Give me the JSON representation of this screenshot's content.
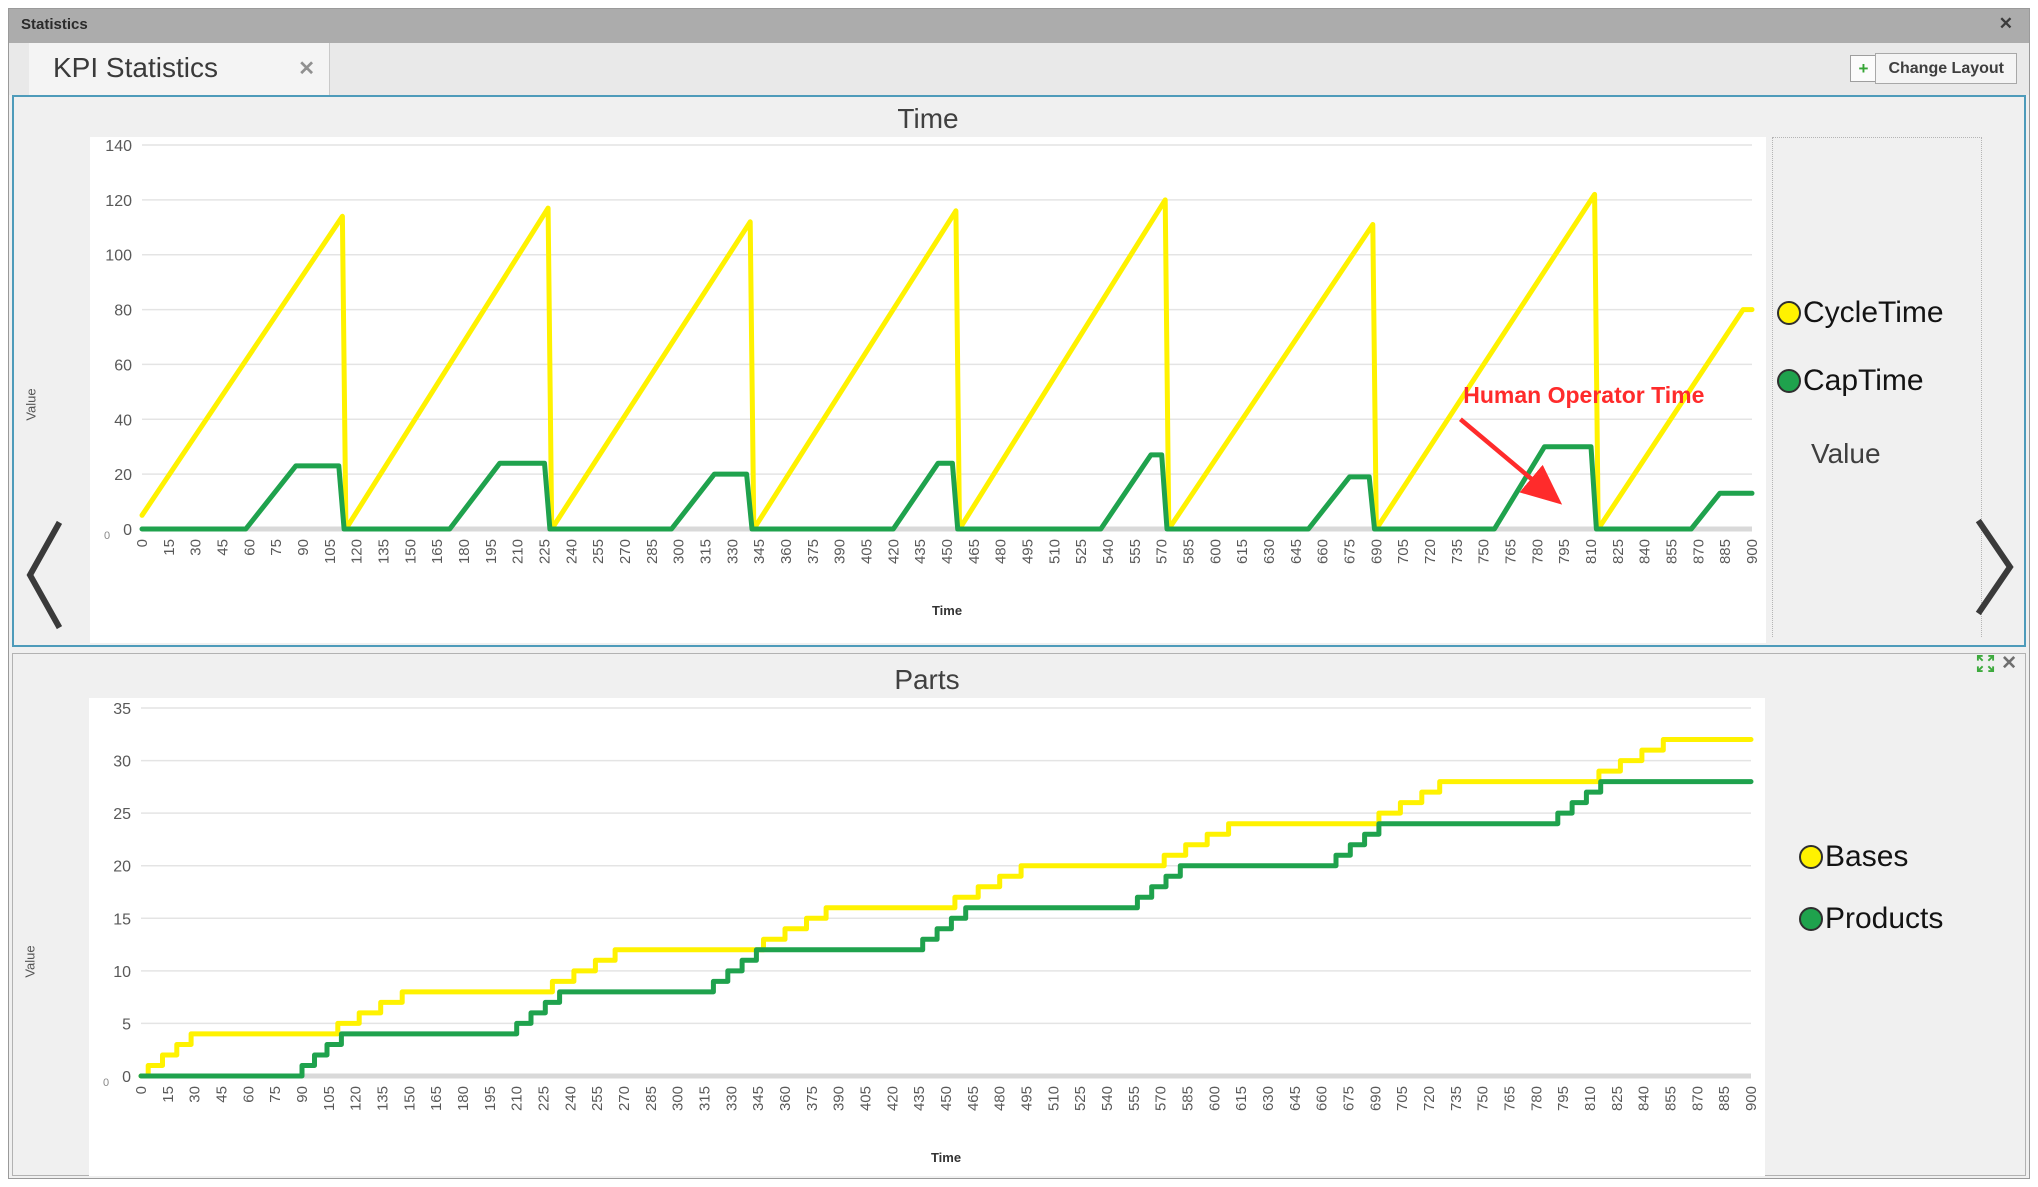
{
  "window": {
    "title": "Statistics",
    "close_icon": "✕"
  },
  "tab": {
    "label": "KPI Statistics",
    "close_icon": "✕"
  },
  "toolbar": {
    "add_icon": "+",
    "change_layout_label": "Change Layout"
  },
  "panel2_controls": {
    "close_icon": "✕"
  },
  "colors": {
    "accent_blue": "#4E9BBA",
    "series_yellow": "#FFF200",
    "series_green": "#1FA24D",
    "annotation_red": "#FF2B2B",
    "grid": "#E4E4E4",
    "zero_band": "#D9D9D9",
    "tick_text": "#595959"
  },
  "chart_data": [
    {
      "type": "line",
      "title": "Time",
      "xlabel": "Time",
      "ylabel": "Value",
      "corner_label": "0",
      "grid": true,
      "legend_position": "right",
      "legend_footer": "Value",
      "xlim": [
        0,
        900
      ],
      "ylim": [
        0,
        140
      ],
      "y_ticks": [
        0,
        20,
        40,
        60,
        80,
        100,
        120,
        140
      ],
      "x_ticks": [
        0,
        15,
        30,
        45,
        60,
        75,
        90,
        105,
        120,
        135,
        150,
        165,
        180,
        195,
        210,
        225,
        240,
        255,
        270,
        285,
        300,
        315,
        330,
        345,
        360,
        375,
        390,
        405,
        420,
        435,
        450,
        465,
        480,
        495,
        510,
        525,
        540,
        555,
        570,
        585,
        600,
        615,
        630,
        645,
        660,
        675,
        690,
        705,
        720,
        735,
        750,
        765,
        780,
        795,
        810,
        825,
        840,
        855,
        870,
        885,
        900
      ],
      "series": [
        {
          "name": "CycleTime",
          "color": "#FFF200",
          "interp": "linear",
          "points": [
            [
              0,
              5
            ],
            [
              112,
              114
            ],
            [
              114,
              0
            ],
            [
              227,
              117
            ],
            [
              229,
              0
            ],
            [
              340,
              112
            ],
            [
              342,
              0
            ],
            [
              455,
              116
            ],
            [
              457,
              0
            ],
            [
              572,
              120
            ],
            [
              574,
              0
            ],
            [
              688,
              111
            ],
            [
              690,
              0
            ],
            [
              812,
              122
            ],
            [
              814,
              0
            ],
            [
              895,
              80
            ],
            [
              900,
              80
            ]
          ]
        },
        {
          "name": "CapTime",
          "color": "#1FA24D",
          "interp": "linear",
          "points": [
            [
              0,
              0
            ],
            [
              58,
              0
            ],
            [
              86,
              23
            ],
            [
              110,
              23
            ],
            [
              113,
              0
            ],
            [
              172,
              0
            ],
            [
              200,
              24
            ],
            [
              225,
              24
            ],
            [
              228,
              0
            ],
            [
              296,
              0
            ],
            [
              320,
              20
            ],
            [
              338,
              20
            ],
            [
              341,
              0
            ],
            [
              420,
              0
            ],
            [
              445,
              24
            ],
            [
              453,
              24
            ],
            [
              456,
              0
            ],
            [
              536,
              0
            ],
            [
              564,
              27
            ],
            [
              570,
              27
            ],
            [
              573,
              0
            ],
            [
              652,
              0
            ],
            [
              675,
              19
            ],
            [
              686,
              19
            ],
            [
              689,
              0
            ],
            [
              756,
              0
            ],
            [
              784,
              30
            ],
            [
              810,
              30
            ],
            [
              813,
              0
            ],
            [
              866,
              0
            ],
            [
              882,
              13
            ],
            [
              900,
              13
            ]
          ]
        }
      ],
      "annotation": {
        "text": "Human Operator Time",
        "color": "#FF2B2B",
        "text_x": 806,
        "text_y": 46,
        "arrow_from": [
          737,
          40
        ],
        "arrow_to": [
          790,
          11
        ]
      }
    },
    {
      "type": "line",
      "title": "Parts",
      "xlabel": "Time",
      "ylabel": "Value",
      "corner_label": "0",
      "grid": true,
      "legend_position": "right",
      "xlim": [
        0,
        900
      ],
      "ylim": [
        0,
        35
      ],
      "y_ticks": [
        0,
        5,
        10,
        15,
        20,
        25,
        30,
        35
      ],
      "x_ticks": [
        0,
        15,
        30,
        45,
        60,
        75,
        90,
        105,
        120,
        135,
        150,
        165,
        180,
        195,
        210,
        225,
        240,
        255,
        270,
        285,
        300,
        315,
        330,
        345,
        360,
        375,
        390,
        405,
        420,
        435,
        450,
        465,
        480,
        495,
        510,
        525,
        540,
        555,
        570,
        585,
        600,
        615,
        630,
        645,
        660,
        675,
        690,
        705,
        720,
        735,
        750,
        765,
        780,
        795,
        810,
        825,
        840,
        855,
        870,
        885,
        900
      ],
      "series": [
        {
          "name": "Bases",
          "color": "#FFF200",
          "interp": "step",
          "points": [
            [
              0,
              0
            ],
            [
              4,
              1
            ],
            [
              12,
              2
            ],
            [
              20,
              3
            ],
            [
              28,
              4
            ],
            [
              110,
              5
            ],
            [
              122,
              6
            ],
            [
              134,
              7
            ],
            [
              146,
              8
            ],
            [
              230,
              9
            ],
            [
              242,
              10
            ],
            [
              254,
              11
            ],
            [
              265,
              12
            ],
            [
              348,
              13
            ],
            [
              360,
              14
            ],
            [
              372,
              15
            ],
            [
              383,
              16
            ],
            [
              455,
              17
            ],
            [
              468,
              18
            ],
            [
              480,
              19
            ],
            [
              492,
              20
            ],
            [
              572,
              21
            ],
            [
              584,
              22
            ],
            [
              596,
              23
            ],
            [
              608,
              24
            ],
            [
              692,
              25
            ],
            [
              704,
              26
            ],
            [
              716,
              27
            ],
            [
              726,
              28
            ],
            [
              815,
              29
            ],
            [
              827,
              30
            ],
            [
              839,
              31
            ],
            [
              851,
              32
            ],
            [
              900,
              32
            ]
          ]
        },
        {
          "name": "Products",
          "color": "#1FA24D",
          "interp": "step",
          "points": [
            [
              0,
              0
            ],
            [
              90,
              1
            ],
            [
              97,
              2
            ],
            [
              104,
              3
            ],
            [
              112,
              4
            ],
            [
              210,
              5
            ],
            [
              218,
              6
            ],
            [
              226,
              7
            ],
            [
              234,
              8
            ],
            [
              320,
              9
            ],
            [
              328,
              10
            ],
            [
              336,
              11
            ],
            [
              344,
              12
            ],
            [
              437,
              13
            ],
            [
              445,
              14
            ],
            [
              453,
              15
            ],
            [
              461,
              16
            ],
            [
              557,
              17
            ],
            [
              565,
              18
            ],
            [
              573,
              19
            ],
            [
              581,
              20
            ],
            [
              668,
              21
            ],
            [
              676,
              22
            ],
            [
              684,
              23
            ],
            [
              692,
              24
            ],
            [
              792,
              25
            ],
            [
              800,
              26
            ],
            [
              808,
              27
            ],
            [
              816,
              28
            ],
            [
              900,
              28
            ]
          ]
        }
      ]
    }
  ]
}
